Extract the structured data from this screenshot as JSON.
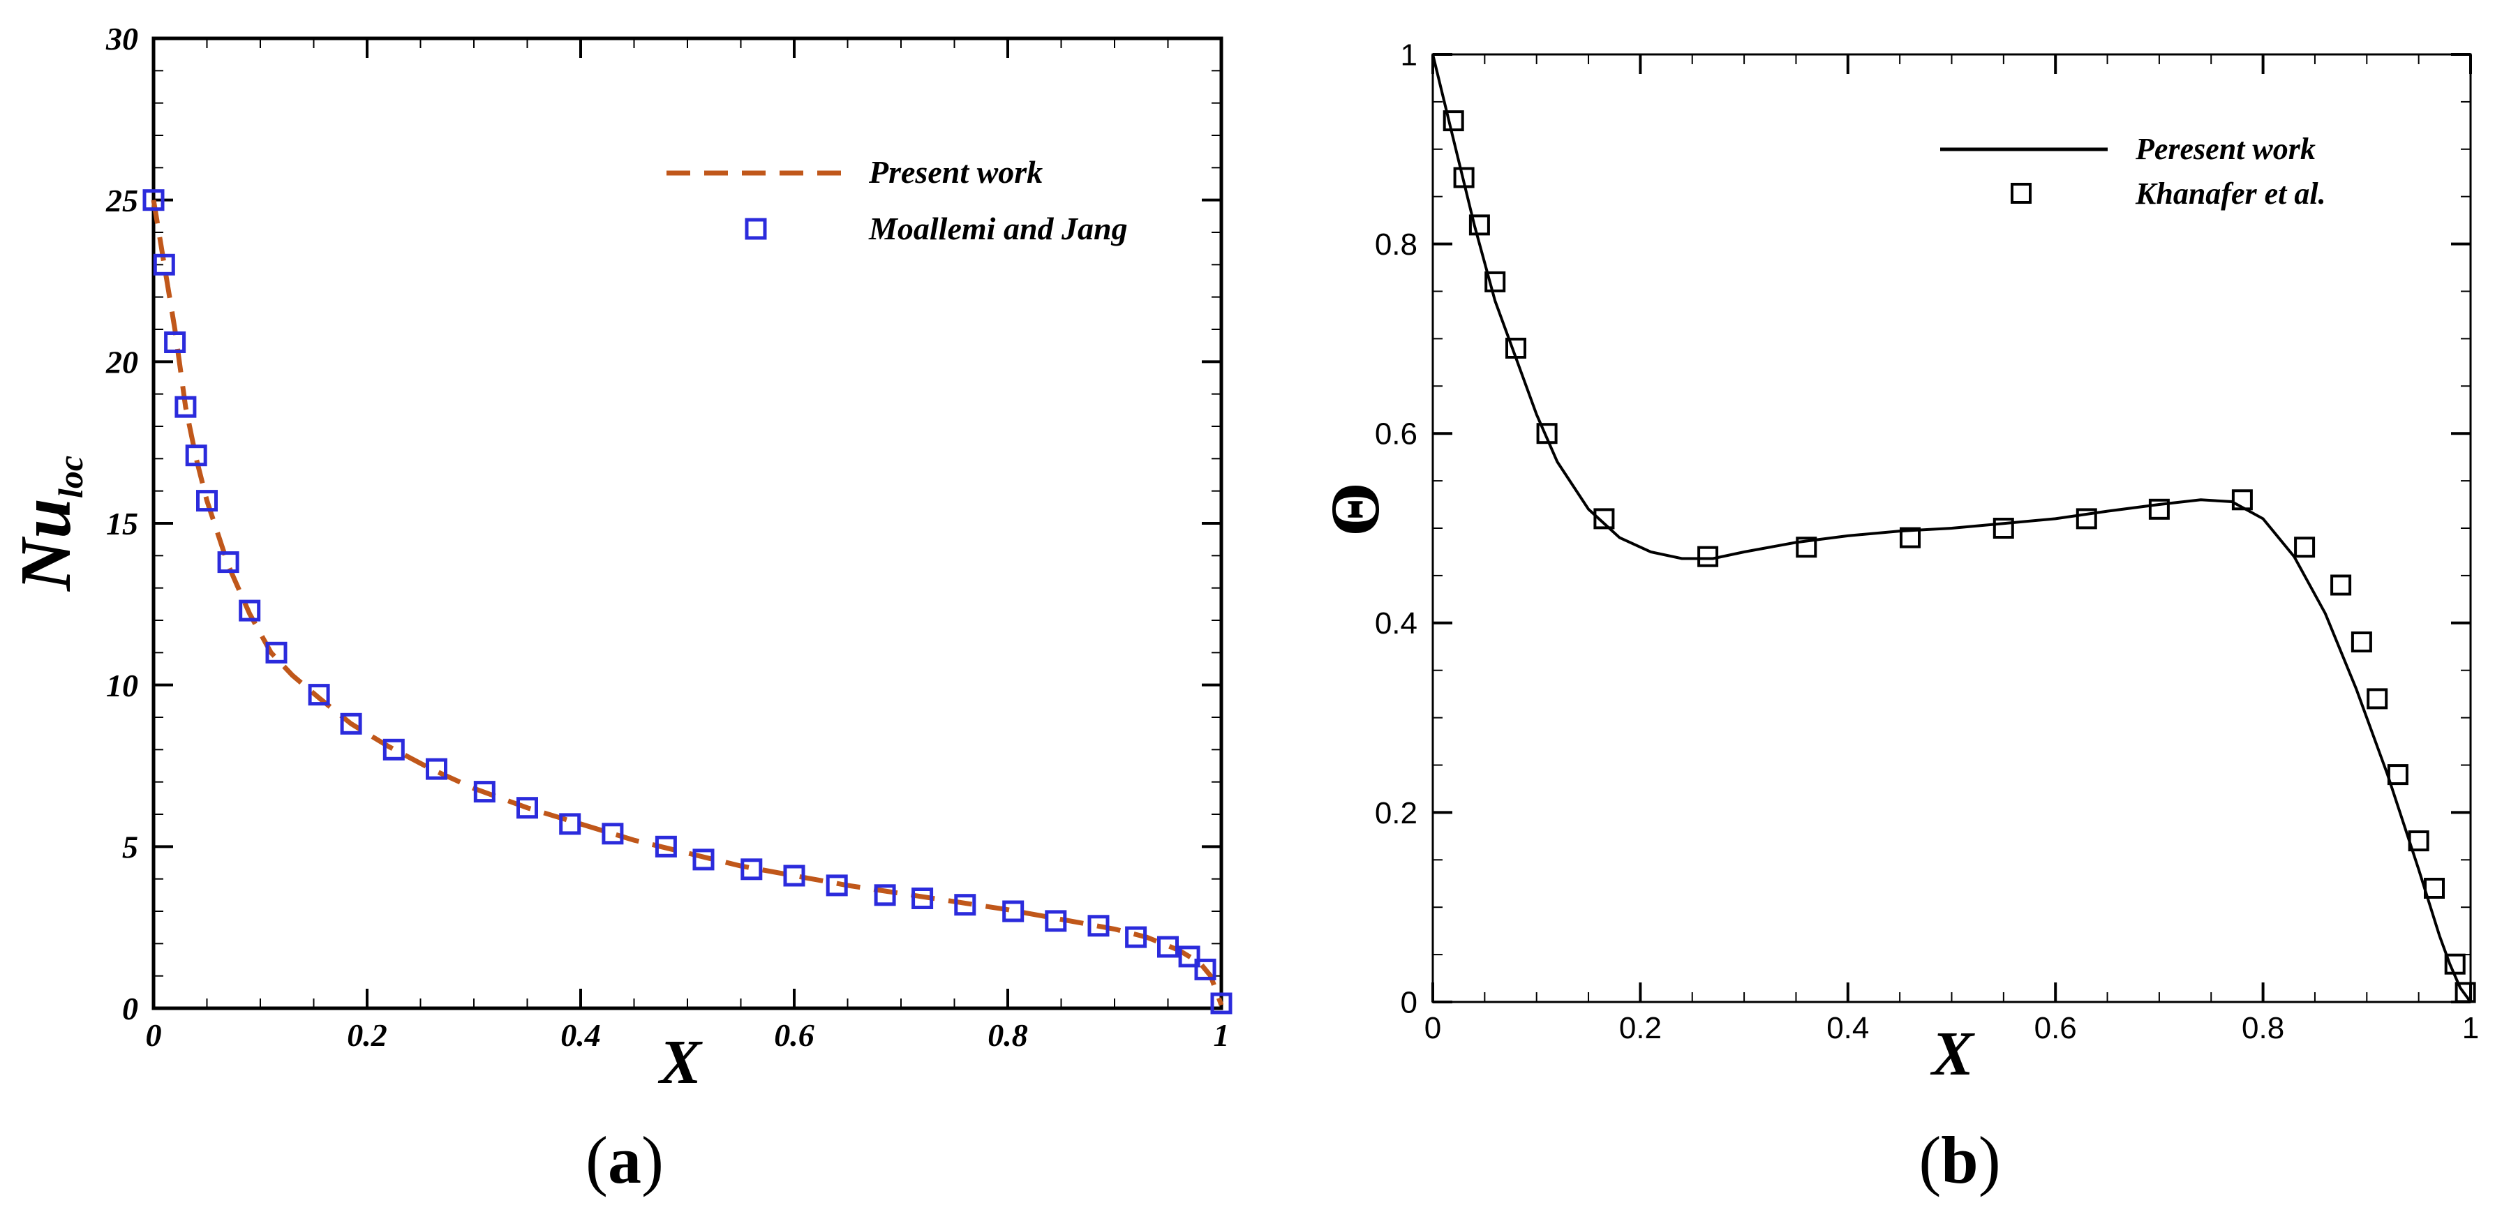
{
  "figure": {
    "panel_a_label": "(a)",
    "panel_a_letter": "a",
    "panel_b_label": "(b)",
    "panel_b_letter": "b"
  },
  "chart_data": [
    {
      "id": "a",
      "type": "line",
      "title": "",
      "xlabel": "X",
      "ylabel_main": "Nu",
      "ylabel_sub": "loc",
      "xlim": [
        0,
        1
      ],
      "ylim": [
        0,
        30
      ],
      "xticks": [
        0,
        0.2,
        0.4,
        0.6,
        0.8,
        1
      ],
      "xtick_labels": [
        "0",
        "0.2",
        "0.4",
        "0.6",
        "0.8",
        "1"
      ],
      "yticks": [
        0,
        5,
        10,
        15,
        20,
        25,
        30
      ],
      "ytick_labels": [
        "0",
        "5",
        "10",
        "15",
        "20",
        "25",
        "30"
      ],
      "grid": false,
      "legend_position": "top-right",
      "colors": {
        "line": "#c0571a",
        "marker": "#2b2bdc",
        "axis": "#000000"
      },
      "series": [
        {
          "name": "Present work",
          "style": "dashed-line",
          "x": [
            0,
            0.005,
            0.01,
            0.02,
            0.03,
            0.04,
            0.05,
            0.07,
            0.09,
            0.11,
            0.13,
            0.155,
            0.185,
            0.22,
            0.26,
            0.3,
            0.35,
            0.4,
            0.45,
            0.5,
            0.55,
            0.6,
            0.65,
            0.7,
            0.75,
            0.8,
            0.85,
            0.9,
            0.93,
            0.96,
            0.98,
            0.99,
            1.0
          ],
          "y": [
            25,
            24.0,
            23.0,
            21.0,
            18.6,
            17.0,
            15.7,
            13.7,
            12.2,
            11.0,
            10.3,
            9.6,
            8.8,
            8.1,
            7.4,
            6.8,
            6.2,
            5.7,
            5.2,
            4.8,
            4.4,
            4.1,
            3.8,
            3.55,
            3.3,
            3.05,
            2.75,
            2.45,
            2.2,
            1.8,
            1.4,
            1.0,
            0.1
          ]
        },
        {
          "name": "Moallemi and Jang",
          "style": "open-square",
          "x": [
            0.0,
            0.01,
            0.02,
            0.03,
            0.04,
            0.05,
            0.07,
            0.09,
            0.115,
            0.155,
            0.185,
            0.225,
            0.265,
            0.31,
            0.35,
            0.39,
            0.43,
            0.48,
            0.515,
            0.56,
            0.6,
            0.64,
            0.685,
            0.72,
            0.76,
            0.805,
            0.845,
            0.885,
            0.92,
            0.95,
            0.97,
            0.985,
            1.0
          ],
          "y": [
            25,
            23,
            20.6,
            18.6,
            17.1,
            15.7,
            13.8,
            12.3,
            11.0,
            9.7,
            8.8,
            8.0,
            7.4,
            6.7,
            6.2,
            5.7,
            5.4,
            5.0,
            4.6,
            4.3,
            4.1,
            3.8,
            3.5,
            3.4,
            3.2,
            3.0,
            2.7,
            2.55,
            2.2,
            1.9,
            1.6,
            1.2,
            0.15
          ]
        }
      ]
    },
    {
      "id": "b",
      "type": "line",
      "title": "",
      "xlabel": "X",
      "ylabel": "Θ",
      "xlim": [
        0,
        1
      ],
      "ylim": [
        0,
        1
      ],
      "xticks": [
        0,
        0.2,
        0.4,
        0.6,
        0.8,
        1
      ],
      "xtick_labels": [
        "0",
        "0.2",
        "0.4",
        "0.6",
        "0.8",
        "1"
      ],
      "yticks": [
        0,
        0.2,
        0.4,
        0.6,
        0.8,
        1
      ],
      "ytick_labels": [
        "0",
        "0.2",
        "0.4",
        "0.6",
        "0.8",
        "1"
      ],
      "grid": false,
      "legend_position": "top-right",
      "colors": {
        "line": "#000000",
        "marker": "#000000",
        "axis": "#000000"
      },
      "series": [
        {
          "name": "Peresent work",
          "style": "solid-line",
          "x": [
            0.0,
            0.02,
            0.04,
            0.06,
            0.08,
            0.1,
            0.12,
            0.15,
            0.18,
            0.21,
            0.24,
            0.27,
            0.3,
            0.35,
            0.4,
            0.45,
            0.5,
            0.55,
            0.6,
            0.65,
            0.7,
            0.74,
            0.77,
            0.8,
            0.83,
            0.86,
            0.89,
            0.92,
            0.95,
            0.97,
            0.98,
            0.99,
            1.0
          ],
          "y": [
            1.0,
            0.91,
            0.82,
            0.74,
            0.68,
            0.62,
            0.57,
            0.52,
            0.49,
            0.475,
            0.468,
            0.468,
            0.475,
            0.485,
            0.492,
            0.497,
            0.5,
            0.505,
            0.51,
            0.518,
            0.525,
            0.53,
            0.528,
            0.51,
            0.47,
            0.41,
            0.33,
            0.24,
            0.14,
            0.07,
            0.04,
            0.015,
            0.0
          ]
        },
        {
          "name": "Khanafer et al.",
          "style": "open-square",
          "x": [
            0.02,
            0.03,
            0.045,
            0.06,
            0.08,
            0.11,
            0.165,
            0.265,
            0.36,
            0.46,
            0.55,
            0.63,
            0.7,
            0.78,
            0.84,
            0.875,
            0.895,
            0.91,
            0.93,
            0.95,
            0.965,
            0.985,
            0.995
          ],
          "y": [
            0.93,
            0.87,
            0.82,
            0.76,
            0.69,
            0.6,
            0.51,
            0.47,
            0.48,
            0.49,
            0.5,
            0.51,
            0.52,
            0.53,
            0.48,
            0.44,
            0.38,
            0.32,
            0.24,
            0.17,
            0.12,
            0.04,
            0.01
          ]
        }
      ]
    }
  ]
}
